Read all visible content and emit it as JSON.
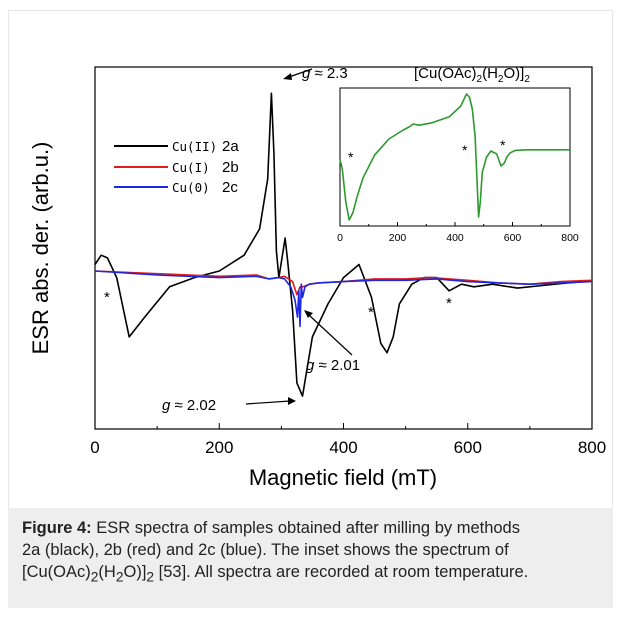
{
  "caption": {
    "label": "Figure 4:",
    "line1": "ESR spectra of samples obtained after milling by methods",
    "line2": "2a (black), 2b (red) and 2c (blue). The inset shows the spectrum of",
    "line3_pre": "[Cu(OAc)",
    "line3_sub1": "2",
    "line3_mid": "(H",
    "line3_sub2": "2",
    "line3_post": "O)]",
    "line3_sub3": "2",
    "line3_end": " [53]. All spectra are recorded at room temperature."
  },
  "chart_data": [
    {
      "type": "line",
      "xlabel": "Magnetic field (mT)",
      "ylabel": "ESR abs. der. (arb.u.)",
      "xlim": [
        0,
        800
      ],
      "xticks": [
        "0",
        "200",
        "400",
        "600",
        "800"
      ],
      "ylim": [
        -1.2,
        1.55
      ],
      "grid": false,
      "legend_position": "top-left",
      "series": [
        {
          "name": "2a",
          "legend_prefix": "Cu(II)",
          "color": "#000000",
          "x": [
            0,
            10,
            20,
            35,
            55,
            80,
            120,
            160,
            200,
            240,
            265,
            278,
            284,
            288,
            292,
            296,
            301,
            306,
            310,
            318,
            325,
            334,
            350,
            375,
            400,
            425,
            445,
            460,
            470,
            480,
            490,
            510,
            530,
            550,
            570,
            590,
            610,
            640,
            680,
            720,
            760,
            790,
            800
          ],
          "y": [
            0.05,
            0.12,
            0.1,
            -0.05,
            -0.5,
            -0.35,
            -0.12,
            -0.05,
            0.0,
            0.12,
            0.32,
            0.7,
            1.35,
            0.9,
            0.15,
            -0.05,
            0.1,
            0.25,
            0.08,
            -0.3,
            -0.85,
            -0.95,
            -0.5,
            -0.25,
            -0.05,
            0.05,
            -0.2,
            -0.55,
            -0.62,
            -0.5,
            -0.25,
            -0.1,
            -0.05,
            -0.05,
            -0.15,
            -0.1,
            -0.12,
            -0.1,
            -0.13,
            -0.11,
            -0.09,
            -0.08,
            -0.07
          ]
        },
        {
          "name": "2b",
          "legend_prefix": "Cu(I)",
          "color": "#e01b1b",
          "x": [
            0,
            100,
            200,
            260,
            280,
            295,
            305,
            318,
            325,
            330,
            335,
            345,
            360,
            400,
            450,
            500,
            540,
            600,
            650,
            700,
            750,
            800
          ],
          "y": [
            0.0,
            -0.02,
            -0.04,
            -0.03,
            -0.06,
            -0.05,
            -0.04,
            -0.08,
            -0.18,
            -0.12,
            -0.12,
            -0.1,
            -0.09,
            -0.08,
            -0.06,
            -0.06,
            -0.05,
            -0.07,
            -0.09,
            -0.1,
            -0.08,
            -0.07
          ]
        },
        {
          "name": "2c",
          "legend_prefix": "Cu(0)",
          "color": "#1e28e0",
          "x": [
            0,
            100,
            200,
            260,
            280,
            295,
            305,
            315,
            322,
            326,
            328,
            330,
            332,
            334,
            338,
            345,
            360,
            400,
            450,
            500,
            550,
            600,
            650,
            700,
            750,
            800
          ],
          "y": [
            0.0,
            -0.03,
            -0.05,
            -0.04,
            -0.06,
            -0.05,
            -0.06,
            -0.12,
            -0.22,
            -0.35,
            -0.15,
            -0.42,
            -0.1,
            -0.2,
            -0.12,
            -0.1,
            -0.09,
            -0.08,
            -0.07,
            -0.07,
            -0.06,
            -0.08,
            -0.09,
            -0.1,
            -0.09,
            -0.08
          ]
        }
      ],
      "annotations": [
        {
          "text": "g ≈ 2.3",
          "g": "g",
          "rest": " ≈ 2.3"
        },
        {
          "text": "g ≈ 2.01",
          "g": "g",
          "rest": " ≈ 2.01"
        },
        {
          "text": "g ≈ 2.02",
          "g": "g",
          "rest": " ≈ 2.02"
        }
      ],
      "markers": [
        "*",
        "*",
        "*",
        "*"
      ]
    },
    {
      "type": "line",
      "title_pre": "[Cu(OAc)",
      "title_sub1": "2",
      "title_mid": "(H",
      "title_sub2": "2",
      "title_post": "O)]",
      "title_sub3": "2",
      "xlim": [
        0,
        800
      ],
      "xticks": [
        "0",
        "200",
        "400",
        "600",
        "800"
      ],
      "ylim": [
        -1.1,
        1.2
      ],
      "series": [
        {
          "name": "",
          "color": "#2e9a2e",
          "x": [
            0,
            8,
            20,
            32,
            45,
            60,
            80,
            120,
            170,
            220,
            240,
            255,
            275,
            320,
            380,
            420,
            440,
            450,
            460,
            470,
            476,
            482,
            488,
            495,
            510,
            525,
            545,
            560,
            572,
            580,
            592,
            610,
            650,
            700,
            750,
            800
          ],
          "y": [
            0.0,
            -0.15,
            -0.7,
            -1.0,
            -0.88,
            -0.6,
            -0.3,
            0.08,
            0.35,
            0.5,
            0.55,
            0.6,
            0.58,
            0.62,
            0.72,
            0.9,
            1.1,
            1.05,
            0.85,
            0.4,
            -0.3,
            -0.95,
            -0.7,
            -0.2,
            0.05,
            0.15,
            0.1,
            -0.1,
            -0.05,
            0.05,
            0.12,
            0.16,
            0.17,
            0.17,
            0.17,
            0.17
          ]
        }
      ],
      "markers": [
        "*",
        "*",
        "*"
      ]
    }
  ]
}
